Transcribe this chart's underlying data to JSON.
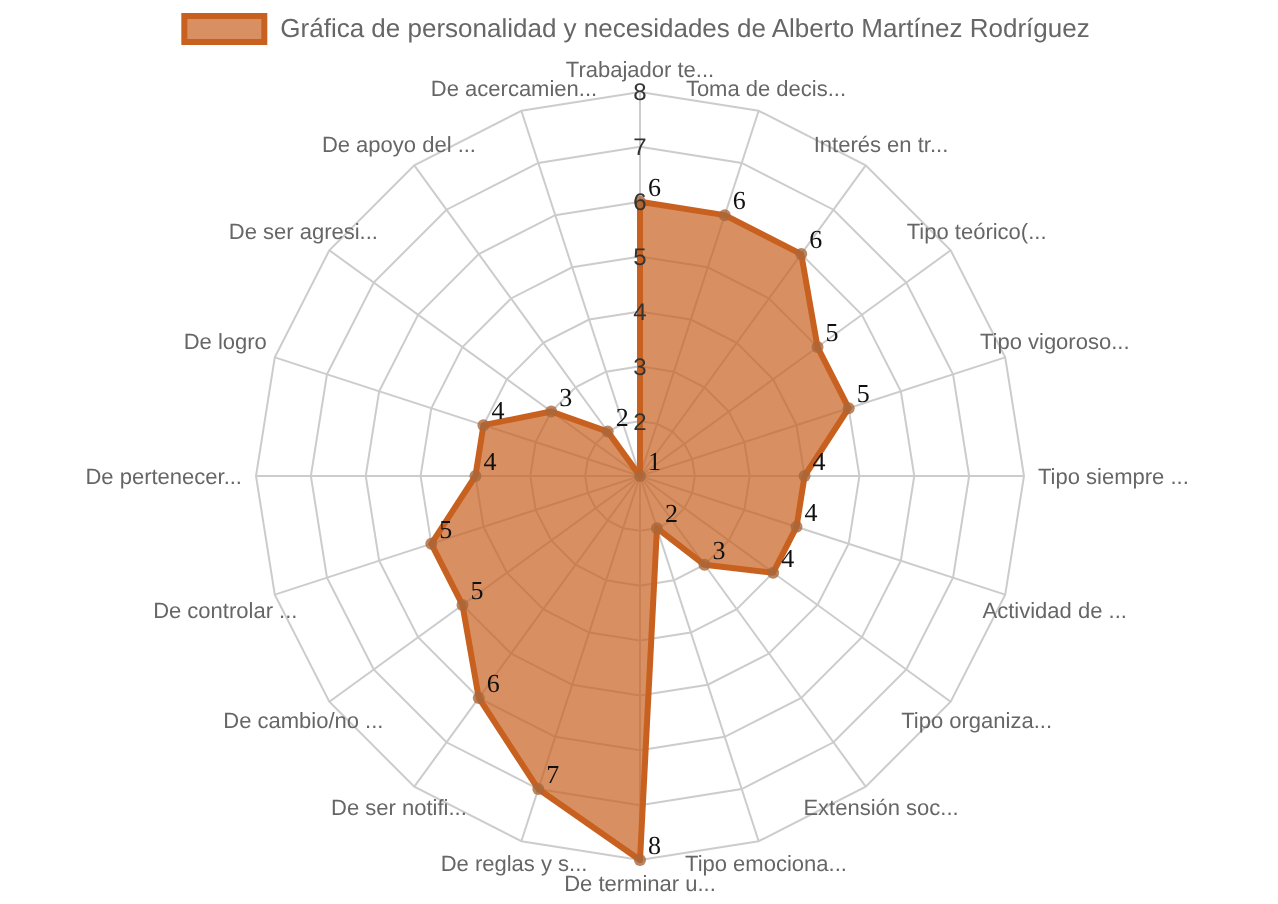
{
  "chart_data": {
    "type": "radar",
    "categories": [
      "Trabajador te...",
      "Toma de decis...",
      "Interés en tr...",
      "Tipo teórico(...",
      "Tipo vigoroso...",
      "Tipo siempre ...",
      "Actividad de ...",
      "Tipo organiza...",
      "Extensión soc...",
      "Tipo emociona...",
      "De terminar u...",
      "De reglas y s...",
      "De ser notifi...",
      "De cambio/no ...",
      "De controlar ...",
      "De pertenecer...",
      "De logro",
      "De ser agresi...",
      "De apoyo del ...",
      "De acercamien..."
    ],
    "series": [
      {
        "name": "Gráfica de personalidad y necesidades de Alberto Martínez Rodríguez",
        "color": "#c8611f",
        "values": [
          6,
          6,
          6,
          5,
          5,
          4,
          4,
          4,
          3,
          2,
          8,
          7,
          6,
          5,
          5,
          4,
          4,
          3,
          2,
          1
        ]
      }
    ],
    "ylim": [
      1,
      8
    ],
    "yticks": [
      2,
      3,
      4,
      5,
      6,
      7,
      8
    ],
    "grid": true,
    "legend": "top",
    "data_labels": true,
    "marker": "circle"
  }
}
